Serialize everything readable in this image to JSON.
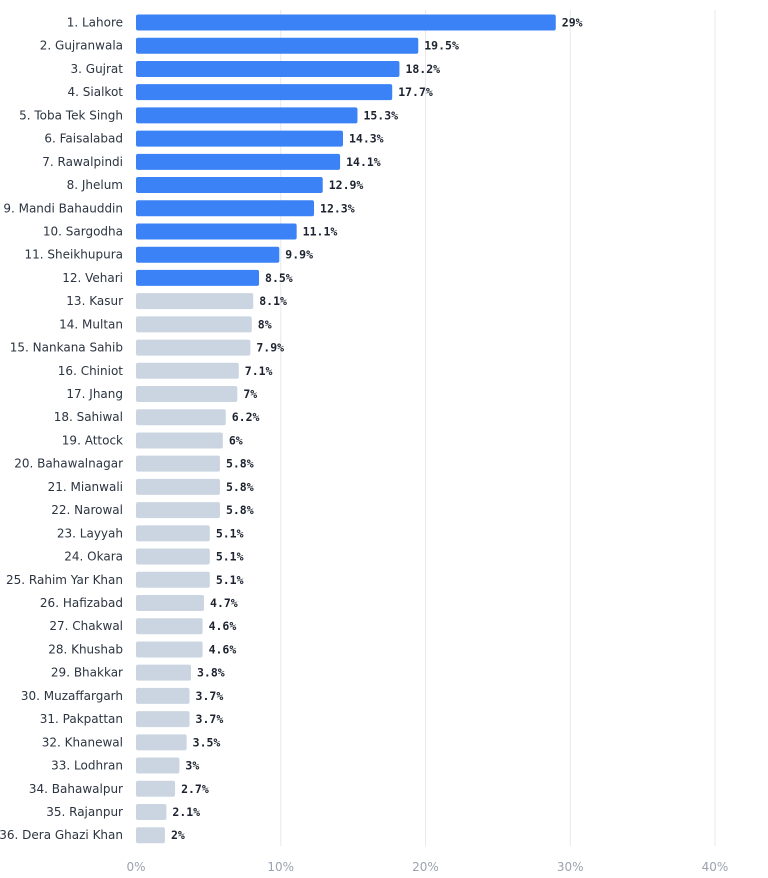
{
  "chart_data": {
    "type": "bar",
    "orientation": "horizontal",
    "title": "",
    "xlabel": "",
    "ylabel": "",
    "xlim": [
      0,
      40
    ],
    "grid": true,
    "categories": [
      "1. Lahore",
      "2. Gujranwala",
      "3. Gujrat",
      "4. Sialkot",
      "5. Toba Tek Singh",
      "6. Faisalabad",
      "7. Rawalpindi",
      "8. Jhelum",
      "9. Mandi Bahauddin",
      "10. Sargodha",
      "11. Sheikhupura",
      "12. Vehari",
      "13. Kasur",
      "14. Multan",
      "15. Nankana Sahib",
      "16. Chiniot",
      "17. Jhang",
      "18. Sahiwal",
      "19. Attock",
      "20. Bahawalnagar",
      "21. Mianwali",
      "22. Narowal",
      "23. Layyah",
      "24. Okara",
      "25. Rahim Yar Khan",
      "26. Hafizabad",
      "27. Chakwal",
      "28. Khushab",
      "29. Bhakkar",
      "30. Muzaffargarh",
      "31. Pakpattan",
      "32. Khanewal",
      "33. Lodhran",
      "34. Bahawalpur",
      "35. Rajanpur",
      "36. Dera Ghazi Khan"
    ],
    "values": [
      29,
      19.5,
      18.2,
      17.7,
      15.3,
      14.3,
      14.1,
      12.9,
      12.3,
      11.1,
      9.9,
      8.5,
      8.1,
      8,
      7.9,
      7.1,
      7,
      6.2,
      6,
      5.8,
      5.8,
      5.8,
      5.1,
      5.1,
      5.1,
      4.7,
      4.6,
      4.6,
      3.8,
      3.7,
      3.7,
      3.5,
      3,
      2.7,
      2.1,
      2
    ],
    "value_labels": [
      "29%",
      "19.5%",
      "18.2%",
      "17.7%",
      "15.3%",
      "14.3%",
      "14.1%",
      "12.9%",
      "12.3%",
      "11.1%",
      "9.9%",
      "8.5%",
      "8.1%",
      "8%",
      "7.9%",
      "7.1%",
      "7%",
      "6.2%",
      "6%",
      "5.8%",
      "5.8%",
      "5.8%",
      "5.1%",
      "5.1%",
      "5.1%",
      "4.7%",
      "4.6%",
      "4.6%",
      "3.8%",
      "3.7%",
      "3.7%",
      "3.5%",
      "3%",
      "2.7%",
      "2.1%",
      "2%"
    ],
    "highlighted_count": 12,
    "x_ticks": [
      0,
      10,
      20,
      30,
      40
    ],
    "x_tick_labels": [
      "0%",
      "10%",
      "20%",
      "30%",
      "40%"
    ],
    "colors": {
      "highlight": "#3b82f6",
      "muted": "#cbd5e1",
      "grid": "#e6e9ee"
    }
  }
}
